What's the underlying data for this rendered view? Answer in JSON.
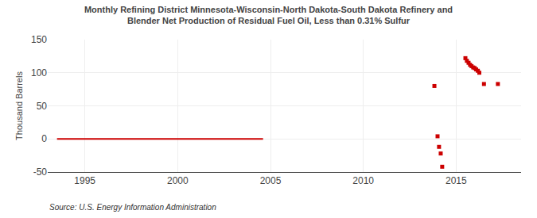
{
  "chart_data": {
    "type": "scatter",
    "title": "Monthly Refining District Minnesota-Wisconsin-North Dakota-South Dakota Refinery and\nBlender Net Production of Residual Fuel Oil, Less than 0.31% Sulfur",
    "ylabel": "Thousand Barrels",
    "annotations": [
      "Source: U.S. Energy Information Administration"
    ],
    "xlim": [
      1993.0,
      2018.5
    ],
    "ylim": [
      -50,
      150
    ],
    "xticks": [
      1995,
      2000,
      2005,
      2010,
      2015
    ],
    "yticks": [
      -50,
      0,
      50,
      100,
      150
    ],
    "grid": true,
    "series": [
      {
        "type": "line",
        "color": "#cc0000",
        "x": [
          1993.5,
          2004.6
        ],
        "values": [
          0,
          0
        ]
      },
      {
        "type": "scatter",
        "color": "#cc0000",
        "marker": "square",
        "x": [
          2013.83,
          2014.0,
          2014.08,
          2014.17,
          2014.25,
          2015.5,
          2015.58,
          2015.67,
          2015.75,
          2015.83,
          2015.92,
          2016.0,
          2016.08,
          2016.17,
          2016.25,
          2016.5,
          2017.25
        ],
        "values": [
          80,
          4,
          -12,
          -22,
          -42,
          122,
          118,
          115,
          112,
          110,
          108,
          107,
          105,
          103,
          100,
          83,
          83
        ]
      }
    ]
  }
}
